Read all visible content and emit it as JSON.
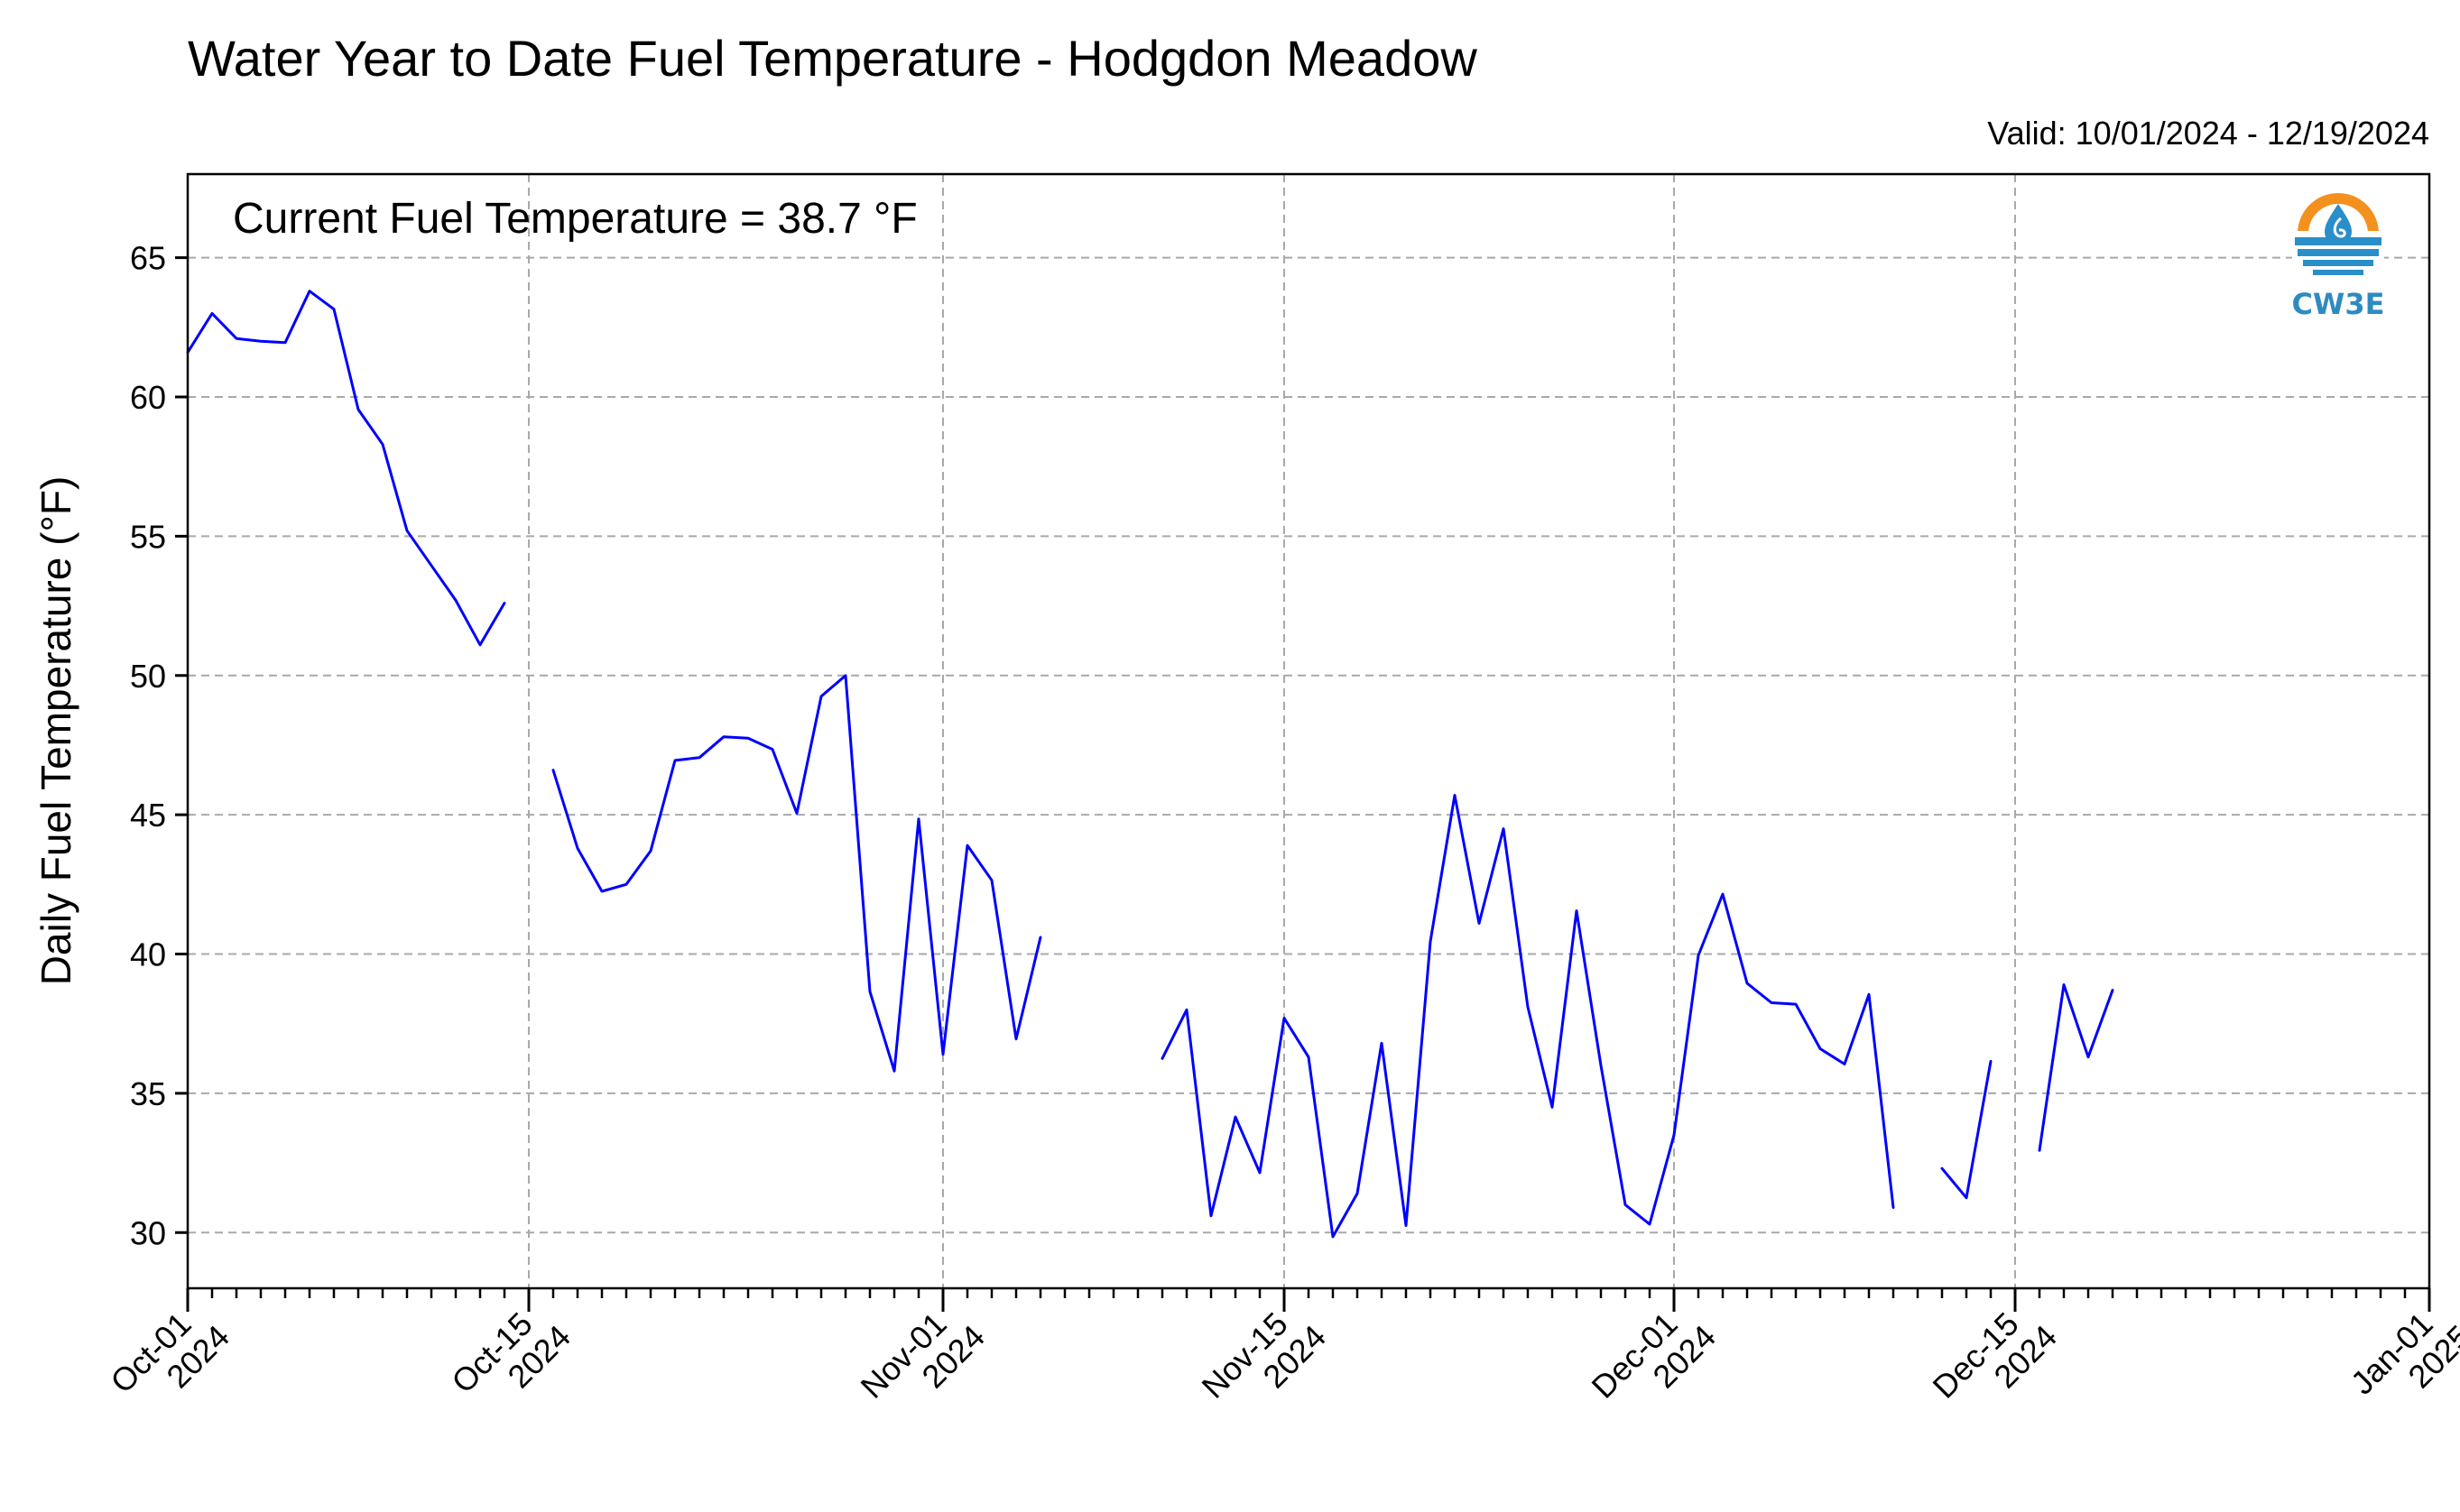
{
  "chart_data": {
    "type": "line",
    "title": "Water Year to Date Fuel Temperature - Hodgdon Meadow",
    "valid_text": "Valid: 10/01/2024 - 12/19/2024",
    "annotation": "Current Fuel Temperature = 38.7 °F",
    "ylabel": "Daily Fuel Temperature (°F)",
    "xlabel": "",
    "ylim": [
      28,
      68
    ],
    "xlim": [
      "2024-10-01",
      "2025-01-01"
    ],
    "yticks": [
      30,
      35,
      40,
      45,
      50,
      55,
      60,
      65
    ],
    "xticks": [
      {
        "date": "2024-10-01",
        "line1": "Oct-01",
        "line2": "2024"
      },
      {
        "date": "2024-10-15",
        "line1": "Oct-15",
        "line2": "2024"
      },
      {
        "date": "2024-11-01",
        "line1": "Nov-01",
        "line2": "2024"
      },
      {
        "date": "2024-11-15",
        "line1": "Nov-15",
        "line2": "2024"
      },
      {
        "date": "2024-12-01",
        "line1": "Dec-01",
        "line2": "2024"
      },
      {
        "date": "2024-12-15",
        "line1": "Dec-15",
        "line2": "2024"
      },
      {
        "date": "2025-01-01",
        "line1": "Jan-01",
        "line2": "2025"
      }
    ],
    "grid": true,
    "series": [
      {
        "color": "#0000ff",
        "x": [
          "2024-10-01",
          "2024-10-02",
          "2024-10-03",
          "2024-10-04",
          "2024-10-05",
          "2024-10-06",
          "2024-10-07",
          "2024-10-08",
          "2024-10-09",
          "2024-10-10",
          "2024-10-11",
          "2024-10-12",
          "2024-10-13",
          "2024-10-14",
          "2024-10-15",
          "2024-10-16",
          "2024-10-17",
          "2024-10-18",
          "2024-10-19",
          "2024-10-20",
          "2024-10-21",
          "2024-10-22",
          "2024-10-23",
          "2024-10-24",
          "2024-10-25",
          "2024-10-26",
          "2024-10-27",
          "2024-10-28",
          "2024-10-29",
          "2024-10-30",
          "2024-10-31",
          "2024-11-01",
          "2024-11-02",
          "2024-11-03",
          "2024-11-04",
          "2024-11-05",
          "2024-11-06",
          "2024-11-07",
          "2024-11-08",
          "2024-11-09",
          "2024-11-10",
          "2024-11-11",
          "2024-11-12",
          "2024-11-13",
          "2024-11-14",
          "2024-11-15",
          "2024-11-16",
          "2024-11-17",
          "2024-11-18",
          "2024-11-19",
          "2024-11-20",
          "2024-11-21",
          "2024-11-22",
          "2024-11-23",
          "2024-11-24",
          "2024-11-25",
          "2024-11-26",
          "2024-11-27",
          "2024-11-28",
          "2024-11-29",
          "2024-11-30",
          "2024-12-01",
          "2024-12-02",
          "2024-12-03",
          "2024-12-04",
          "2024-12-05",
          "2024-12-06",
          "2024-12-07",
          "2024-12-08",
          "2024-12-09",
          "2024-12-10",
          "2024-12-11",
          "2024-12-12",
          "2024-12-13",
          "2024-12-14",
          "2024-12-15",
          "2024-12-16",
          "2024-12-17",
          "2024-12-18",
          "2024-12-19"
        ],
        "values": [
          61.6,
          63.0,
          62.1,
          62.0,
          61.95,
          63.8,
          63.15,
          59.55,
          58.3,
          55.2,
          53.95,
          52.7,
          51.1,
          52.6,
          null,
          46.6,
          43.8,
          42.25,
          42.5,
          43.7,
          46.95,
          47.05,
          47.8,
          47.75,
          47.35,
          45.05,
          49.25,
          50.0,
          38.65,
          35.8,
          44.85,
          36.4,
          43.9,
          42.65,
          36.95,
          40.6,
          null,
          null,
          null,
          null,
          36.25,
          38.0,
          30.6,
          34.15,
          32.15,
          37.7,
          36.3,
          29.85,
          31.4,
          36.8,
          30.25,
          40.45,
          45.7,
          41.1,
          44.5,
          38.1,
          34.5,
          41.55,
          36.0,
          31.0,
          30.3,
          33.5,
          39.95,
          42.15,
          38.95,
          38.25,
          38.2,
          36.6,
          36.05,
          38.55,
          30.9,
          null,
          32.3,
          31.25,
          36.15,
          null,
          32.95,
          38.9,
          36.3,
          38.7
        ]
      }
    ]
  },
  "logo": {
    "text": "CW3E",
    "colors": {
      "orange": "#f4901e",
      "blue": "#2a8ec9",
      "teal": "#2e8bc0"
    }
  }
}
